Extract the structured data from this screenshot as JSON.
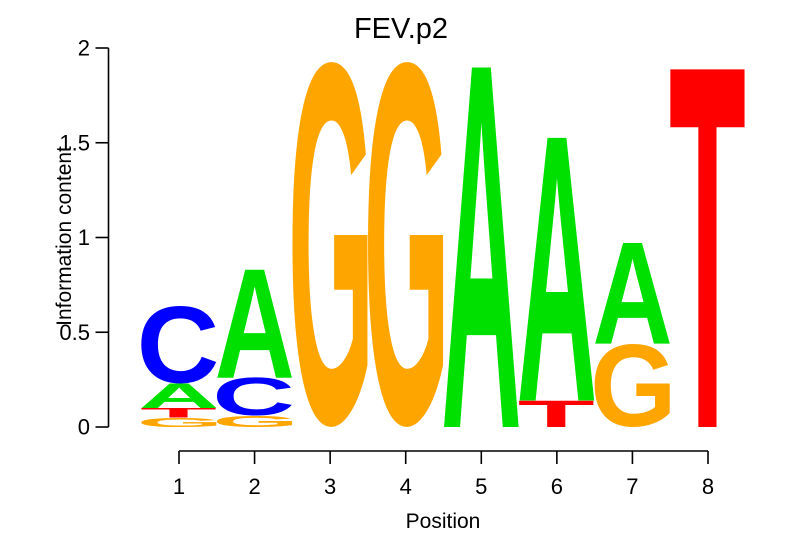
{
  "chart_data": {
    "type": "sequence_logo",
    "title": "FEV.p2",
    "xlabel": "Position",
    "ylabel": "Information content",
    "ylim": [
      0,
      2
    ],
    "yticks": [
      0,
      0.5,
      1,
      1.5,
      2
    ],
    "ytick_labels": [
      "0",
      "0.5",
      "1",
      "1.5",
      "2"
    ],
    "xtick_labels": [
      "1",
      "2",
      "3",
      "4",
      "5",
      "6",
      "7",
      "8"
    ],
    "grid": false,
    "legend": false,
    "letter_colors": {
      "A": "#00e000",
      "C": "#0000ff",
      "G": "#ffa500",
      "T": "#ff0000"
    },
    "stacks": [
      {
        "position": "1",
        "letters": [
          {
            "base": "G",
            "bits": 0.05
          },
          {
            "base": "T",
            "bits": 0.05
          },
          {
            "base": "A",
            "bits": 0.13
          },
          {
            "base": "C",
            "bits": 0.41
          }
        ]
      },
      {
        "position": "2",
        "letters": [
          {
            "base": "G",
            "bits": 0.06
          },
          {
            "base": "C",
            "bits": 0.2
          },
          {
            "base": "A",
            "bits": 0.58
          }
        ]
      },
      {
        "position": "3",
        "letters": [
          {
            "base": "G",
            "bits": 1.93
          }
        ]
      },
      {
        "position": "4",
        "letters": [
          {
            "base": "G",
            "bits": 1.93
          }
        ]
      },
      {
        "position": "5",
        "letters": [
          {
            "base": "A",
            "bits": 1.93
          }
        ]
      },
      {
        "position": "6",
        "letters": [
          {
            "base": "T",
            "bits": 0.14
          },
          {
            "base": "A",
            "bits": 1.41
          }
        ]
      },
      {
        "position": "7",
        "letters": [
          {
            "base": "G",
            "bits": 0.44
          },
          {
            "base": "A",
            "bits": 0.54
          }
        ]
      },
      {
        "position": "8",
        "letters": [
          {
            "base": "T",
            "bits": 1.92
          }
        ]
      }
    ]
  }
}
